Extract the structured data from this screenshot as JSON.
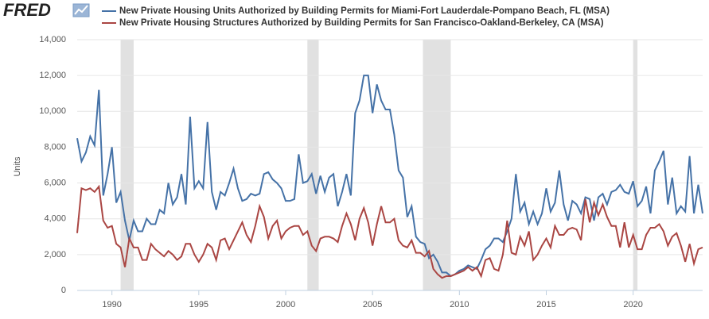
{
  "chart_data": {
    "type": "line",
    "logo": "FRED",
    "ylabel": "Units",
    "x": [
      1988,
      1988.25,
      1988.5,
      1988.75,
      1989,
      1989.25,
      1989.5,
      1989.75,
      1990,
      1990.25,
      1990.5,
      1990.75,
      1991,
      1991.25,
      1991.5,
      1991.75,
      1992,
      1992.25,
      1992.5,
      1992.75,
      1993,
      1993.25,
      1993.5,
      1993.75,
      1994,
      1994.25,
      1994.5,
      1994.75,
      1995,
      1995.25,
      1995.5,
      1995.75,
      1996,
      1996.25,
      1996.5,
      1996.75,
      1997,
      1997.25,
      1997.5,
      1997.75,
      1998,
      1998.25,
      1998.5,
      1998.75,
      1999,
      1999.25,
      1999.5,
      1999.75,
      2000,
      2000.25,
      2000.5,
      2000.75,
      2001,
      2001.25,
      2001.5,
      2001.75,
      2002,
      2002.25,
      2002.5,
      2002.75,
      2003,
      2003.25,
      2003.5,
      2003.75,
      2004,
      2004.25,
      2004.5,
      2004.75,
      2005,
      2005.25,
      2005.5,
      2005.75,
      2006,
      2006.25,
      2006.5,
      2006.75,
      2007,
      2007.25,
      2007.5,
      2007.75,
      2008,
      2008.25,
      2008.5,
      2008.75,
      2009,
      2009.25,
      2009.5,
      2009.75,
      2010,
      2010.25,
      2010.5,
      2010.75,
      2011,
      2011.25,
      2011.5,
      2011.75,
      2012,
      2012.25,
      2012.5,
      2012.75,
      2013,
      2013.25,
      2013.5,
      2013.75,
      2014,
      2014.25,
      2014.5,
      2014.75,
      2015,
      2015.25,
      2015.5,
      2015.75,
      2016,
      2016.25,
      2016.5,
      2016.75,
      2017,
      2017.25,
      2017.5,
      2017.75,
      2018,
      2018.25,
      2018.5,
      2018.75,
      2019,
      2019.25,
      2019.5,
      2019.75,
      2020,
      2020.25,
      2020.5,
      2020.75,
      2021,
      2021.25,
      2021.5,
      2021.75,
      2022,
      2022.25,
      2022.5,
      2022.75,
      2023,
      2023.25,
      2023.5,
      2023.75,
      2024
    ],
    "series": [
      {
        "name": "New Private Housing Units Authorized by Building Permits for Miami-Fort Lauderdale-Pompano Beach, FL (MSA)",
        "color": "#4572a7",
        "values": [
          8500,
          7200,
          7700,
          8600,
          8100,
          11200,
          5300,
          6500,
          8000,
          4900,
          5500,
          3900,
          2800,
          3900,
          3300,
          3300,
          4000,
          3700,
          3700,
          4500,
          4300,
          6000,
          4800,
          5200,
          6500,
          4800,
          9700,
          5700,
          6100,
          5700,
          9400,
          5500,
          4500,
          5500,
          5300,
          6000,
          6800,
          5700,
          5000,
          5100,
          5400,
          5300,
          5400,
          6500,
          6600,
          6200,
          6000,
          5700,
          5000,
          5000,
          5100,
          7600,
          6000,
          6100,
          6500,
          5400,
          6400,
          5500,
          6300,
          6500,
          4700,
          5500,
          6500,
          5300,
          9900,
          10600,
          12000,
          12000,
          9900,
          11500,
          10600,
          10100,
          10100,
          8700,
          6700,
          6300,
          4100,
          4700,
          3000,
          2700,
          2600,
          1800,
          2000,
          1600,
          1000,
          1000,
          800,
          900,
          1100,
          1200,
          1400,
          1300,
          1200,
          1700,
          2300,
          2500,
          2900,
          2900,
          2700,
          3300,
          4000,
          6500,
          4400,
          4900,
          3700,
          4400,
          3700,
          4300,
          5700,
          4400,
          4900,
          6700,
          4800,
          3900,
          5000,
          4800,
          4300,
          5200,
          5100,
          3900,
          5200,
          5400,
          4800,
          5500,
          5600,
          5900,
          5500,
          5400,
          6100,
          4700,
          5000,
          5800,
          4300,
          6700,
          7200,
          7800,
          4800,
          6300,
          4300,
          4700,
          4400,
          7500,
          4300,
          5900,
          4300
        ]
      },
      {
        "name": "New Private Housing Structures Authorized by Building Permits for San Francisco-Oakland-Berkeley, CA (MSA)",
        "color": "#aa4643",
        "values": [
          3200,
          5700,
          5600,
          5700,
          5500,
          5800,
          3900,
          3500,
          3600,
          2600,
          2400,
          1300,
          2900,
          2400,
          2400,
          1700,
          1700,
          2600,
          2300,
          2100,
          1900,
          2200,
          2000,
          1700,
          1900,
          2600,
          2600,
          2000,
          1600,
          2000,
          2600,
          2400,
          1700,
          2800,
          2900,
          2300,
          2800,
          3300,
          3800,
          3100,
          2700,
          3600,
          4700,
          4100,
          2900,
          3600,
          3900,
          2900,
          3300,
          3500,
          3600,
          3600,
          3100,
          3300,
          2500,
          2200,
          2900,
          3000,
          3000,
          2900,
          2700,
          3600,
          4300,
          3700,
          2800,
          4000,
          4600,
          3800,
          2500,
          3700,
          4700,
          3800,
          3800,
          4000,
          2800,
          2500,
          2400,
          2800,
          2100,
          2100,
          1900,
          2200,
          1200,
          900,
          700,
          800,
          800,
          900,
          1000,
          1100,
          1300,
          1100,
          1300,
          800,
          1700,
          1800,
          1200,
          1100,
          2000,
          3900,
          2100,
          2000,
          3000,
          2500,
          3300,
          1700,
          2000,
          2500,
          2900,
          2400,
          3600,
          3100,
          3100,
          3400,
          3500,
          3400,
          2800,
          5100,
          3800,
          4900,
          4200,
          4800,
          4100,
          3600,
          3600,
          2400,
          3800,
          2400,
          3100,
          2300,
          2300,
          3100,
          3500,
          3500,
          3700,
          3300,
          2500,
          3000,
          3200,
          2500,
          1600,
          2600,
          1500,
          2300,
          2400
        ]
      }
    ],
    "recessions": [
      [
        1990.5,
        1991.25
      ],
      [
        2001.25,
        2001.9
      ],
      [
        2007.9,
        2009.5
      ],
      [
        2020,
        2020.25
      ]
    ],
    "recession_color": "#e1e1e1",
    "xlim": [
      1988,
      2024
    ],
    "xticks": [
      1990,
      1995,
      2000,
      2005,
      2010,
      2015,
      2020
    ],
    "ylim": [
      0,
      14000
    ],
    "yticks": [
      0,
      {
        "value": 2000,
        "label": "2,000"
      },
      {
        "value": 4000,
        "label": "4,000"
      },
      {
        "value": 6000,
        "label": "6,000"
      },
      {
        "value": 8000,
        "label": "8,000"
      },
      {
        "value": 10000,
        "label": "10,000"
      },
      {
        "value": 12000,
        "label": "12,000"
      },
      {
        "value": 14000,
        "label": "14,000"
      }
    ],
    "grid": true
  }
}
